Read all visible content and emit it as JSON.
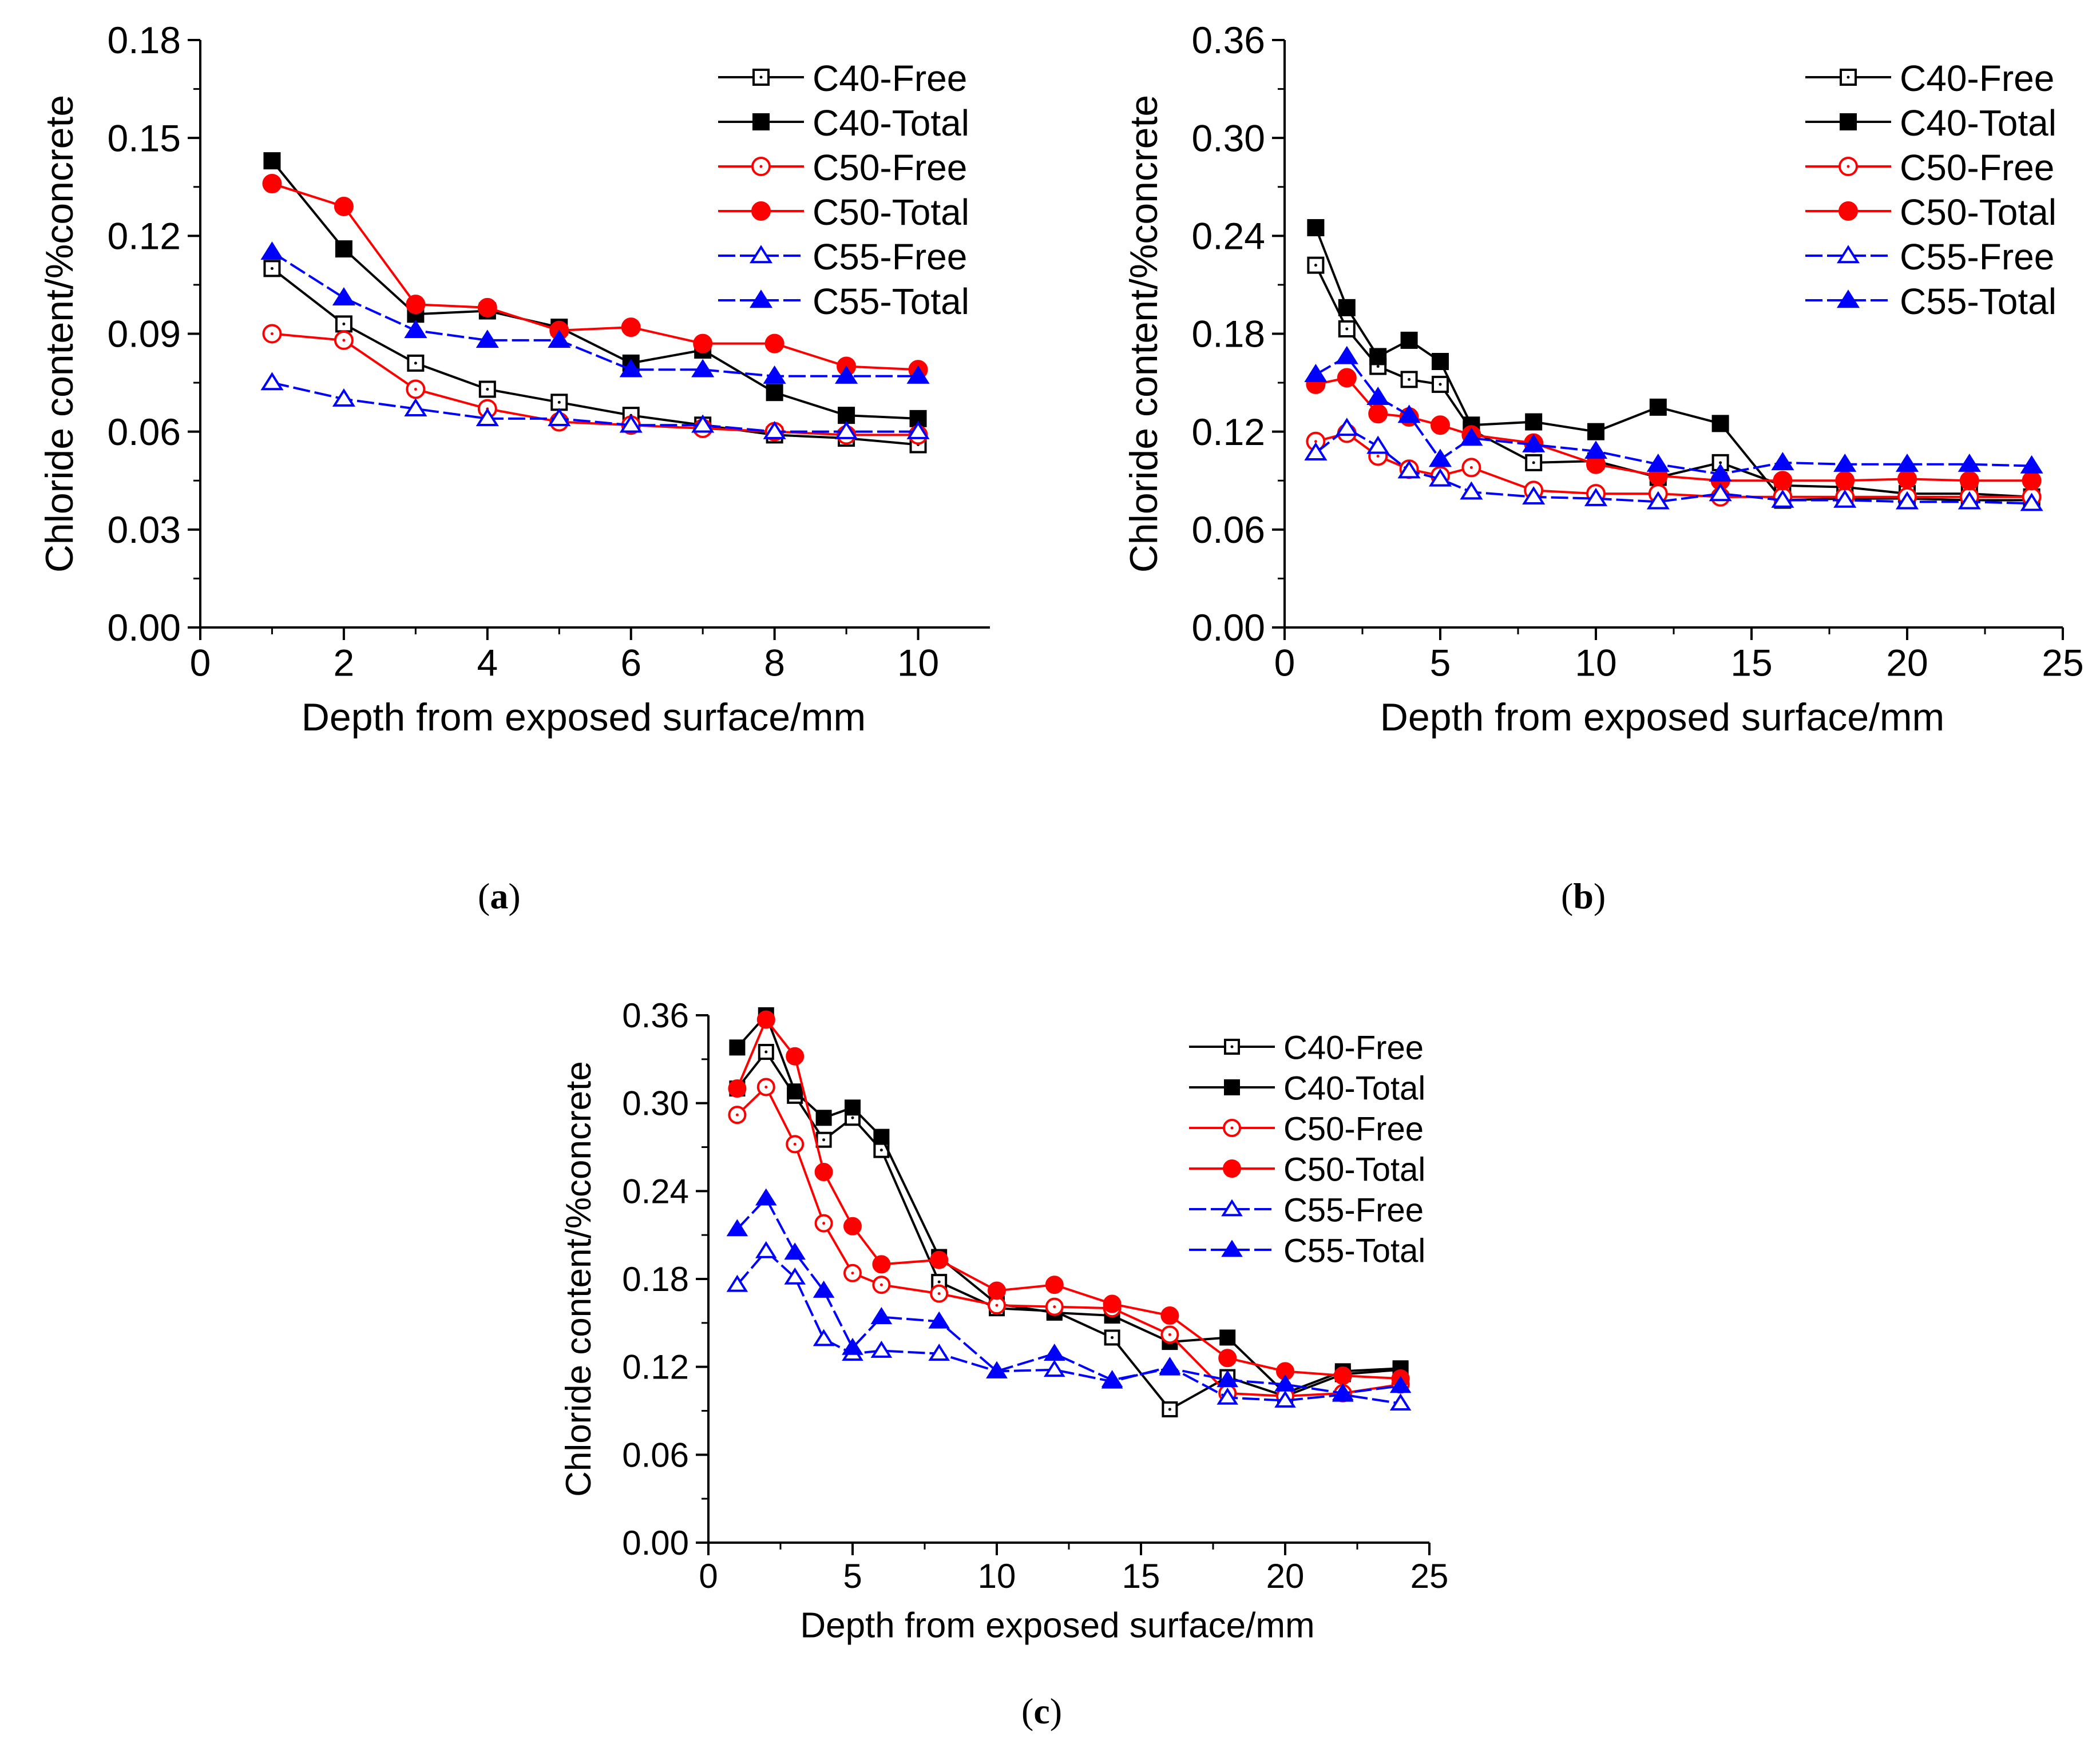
{
  "chart_data": [
    {
      "type": "line",
      "panel": "a",
      "xlabel": "Depth from exposed surface/mm",
      "ylabel": "Chloride content/%concrete",
      "xlim": [
        0,
        11
      ],
      "ylim": [
        0,
        0.18
      ],
      "xticks": [
        0,
        2,
        4,
        6,
        8,
        10
      ],
      "yticks": [
        0.0,
        0.03,
        0.06,
        0.09,
        0.12,
        0.15,
        0.18
      ],
      "ytick_decimals": 2,
      "legend": "top-right",
      "series": [
        {
          "name": "C40-Free",
          "color": "#000000",
          "marker": "square-open",
          "dashed": false,
          "x": [
            1,
            2,
            3,
            4,
            5,
            6,
            7,
            8,
            9,
            10
          ],
          "y": [
            0.11,
            0.093,
            0.081,
            0.073,
            0.069,
            0.065,
            0.062,
            0.059,
            0.058,
            0.056
          ]
        },
        {
          "name": "C40-Total",
          "color": "#000000",
          "marker": "square-filled",
          "dashed": false,
          "x": [
            1,
            2,
            3,
            4,
            5,
            6,
            7,
            8,
            9,
            10
          ],
          "y": [
            0.143,
            0.116,
            0.096,
            0.097,
            0.092,
            0.081,
            0.085,
            0.072,
            0.065,
            0.064
          ]
        },
        {
          "name": "C50-Free",
          "color": "#ff0000",
          "marker": "circle-open",
          "dashed": false,
          "x": [
            1,
            2,
            3,
            4,
            5,
            6,
            7,
            8,
            9,
            10
          ],
          "y": [
            0.09,
            0.088,
            0.073,
            0.067,
            0.063,
            0.062,
            0.061,
            0.06,
            0.059,
            0.059
          ]
        },
        {
          "name": "C50-Total",
          "color": "#ff0000",
          "marker": "circle-filled",
          "dashed": false,
          "x": [
            1,
            2,
            3,
            4,
            5,
            6,
            7,
            8,
            9,
            10
          ],
          "y": [
            0.136,
            0.129,
            0.099,
            0.098,
            0.091,
            0.092,
            0.087,
            0.087,
            0.08,
            0.079
          ]
        },
        {
          "name": "C55-Free",
          "color": "#0000ff",
          "marker": "triangle-open",
          "dashed": true,
          "x": [
            1,
            2,
            3,
            4,
            5,
            6,
            7,
            8,
            9,
            10
          ],
          "y": [
            0.075,
            0.07,
            0.067,
            0.064,
            0.064,
            0.062,
            0.062,
            0.06,
            0.06,
            0.06
          ]
        },
        {
          "name": "C55-Total",
          "color": "#0000ff",
          "marker": "triangle-filled",
          "dashed": true,
          "x": [
            1,
            2,
            3,
            4,
            5,
            6,
            7,
            8,
            9,
            10
          ],
          "y": [
            0.115,
            0.101,
            0.091,
            0.088,
            0.088,
            0.079,
            0.079,
            0.077,
            0.077,
            0.077
          ]
        }
      ]
    },
    {
      "type": "line",
      "panel": "b",
      "xlabel": "Depth from exposed surface/mm",
      "ylabel": "Chloride content/%concrete",
      "xlim": [
        0,
        25
      ],
      "ylim": [
        0,
        0.36
      ],
      "xticks": [
        0,
        5,
        10,
        15,
        20,
        25
      ],
      "yticks": [
        0.0,
        0.06,
        0.12,
        0.18,
        0.24,
        0.3,
        0.36
      ],
      "ytick_decimals": 2,
      "legend": "top-right",
      "series": [
        {
          "name": "C40-Free",
          "color": "#000000",
          "marker": "square-open",
          "dashed": false,
          "x": [
            1,
            2,
            3,
            4,
            5,
            6,
            8,
            10,
            12,
            14,
            16,
            18,
            20,
            22,
            24
          ],
          "y": [
            0.222,
            0.183,
            0.16,
            0.152,
            0.149,
            0.121,
            0.101,
            0.102,
            0.092,
            0.101,
            0.087,
            0.086,
            0.082,
            0.082,
            0.08
          ]
        },
        {
          "name": "C40-Total",
          "color": "#000000",
          "marker": "square-filled",
          "dashed": false,
          "x": [
            1,
            2,
            3,
            4,
            5,
            6,
            8,
            10,
            12,
            14,
            16,
            18,
            20,
            22,
            24
          ],
          "y": [
            0.245,
            0.196,
            0.166,
            0.176,
            0.163,
            0.124,
            0.126,
            0.12,
            0.135,
            0.125,
            0.078,
            0.079,
            0.079,
            0.078,
            0.078
          ]
        },
        {
          "name": "C50-Free",
          "color": "#ff0000",
          "marker": "circle-open",
          "dashed": false,
          "x": [
            1,
            2,
            3,
            4,
            5,
            6,
            8,
            10,
            12,
            14,
            16,
            18,
            20,
            22,
            24
          ],
          "y": [
            0.114,
            0.119,
            0.105,
            0.097,
            0.093,
            0.098,
            0.084,
            0.082,
            0.082,
            0.08,
            0.08,
            0.08,
            0.08,
            0.08,
            0.08
          ]
        },
        {
          "name": "C50-Total",
          "color": "#ff0000",
          "marker": "circle-filled",
          "dashed": false,
          "x": [
            1,
            2,
            3,
            4,
            5,
            6,
            8,
            10,
            12,
            14,
            16,
            18,
            20,
            22,
            24
          ],
          "y": [
            0.149,
            0.153,
            0.131,
            0.129,
            0.124,
            0.118,
            0.113,
            0.1,
            0.093,
            0.09,
            0.09,
            0.09,
            0.091,
            0.09,
            0.09
          ]
        },
        {
          "name": "C55-Free",
          "color": "#0000ff",
          "marker": "triangle-open",
          "dashed": true,
          "x": [
            1,
            2,
            3,
            4,
            5,
            6,
            8,
            10,
            12,
            14,
            16,
            18,
            20,
            22,
            24
          ],
          "y": [
            0.107,
            0.122,
            0.111,
            0.096,
            0.091,
            0.083,
            0.08,
            0.079,
            0.077,
            0.082,
            0.078,
            0.078,
            0.077,
            0.077,
            0.076
          ]
        },
        {
          "name": "C55-Total",
          "color": "#0000ff",
          "marker": "triangle-filled",
          "dashed": true,
          "x": [
            1,
            2,
            3,
            4,
            5,
            6,
            8,
            10,
            12,
            14,
            16,
            18,
            20,
            22,
            24
          ],
          "y": [
            0.155,
            0.166,
            0.141,
            0.13,
            0.103,
            0.116,
            0.112,
            0.108,
            0.1,
            0.094,
            0.101,
            0.1,
            0.1,
            0.1,
            0.099
          ]
        }
      ]
    },
    {
      "type": "line",
      "panel": "c",
      "xlabel": "Depth from exposed surface/mm",
      "ylabel": "Chloride content/%concrete",
      "xlim": [
        0,
        25
      ],
      "ylim": [
        0,
        0.36
      ],
      "xticks": [
        0,
        5,
        10,
        15,
        20,
        25
      ],
      "yticks": [
        0.0,
        0.06,
        0.12,
        0.18,
        0.24,
        0.3,
        0.36
      ],
      "ytick_decimals": 2,
      "legend": "top-right",
      "series": [
        {
          "name": "C40-Free",
          "color": "#000000",
          "marker": "square-open",
          "dashed": false,
          "x": [
            1,
            2,
            3,
            4,
            5,
            6,
            8,
            10,
            12,
            14,
            16,
            18,
            20,
            22,
            24
          ],
          "y": [
            0.31,
            0.335,
            0.305,
            0.275,
            0.29,
            0.268,
            0.178,
            0.16,
            0.158,
            0.14,
            0.091,
            0.113,
            0.1,
            0.115,
            0.118
          ]
        },
        {
          "name": "C40-Total",
          "color": "#000000",
          "marker": "square-filled",
          "dashed": false,
          "x": [
            1,
            2,
            3,
            4,
            5,
            6,
            8,
            10,
            12,
            14,
            16,
            18,
            20,
            22,
            24
          ],
          "y": [
            0.338,
            0.36,
            0.308,
            0.29,
            0.297,
            0.277,
            0.195,
            0.163,
            0.157,
            0.155,
            0.137,
            0.14,
            0.102,
            0.117,
            0.119
          ]
        },
        {
          "name": "C50-Free",
          "color": "#ff0000",
          "marker": "circle-open",
          "dashed": false,
          "x": [
            1,
            2,
            3,
            4,
            5,
            6,
            8,
            10,
            12,
            14,
            16,
            18,
            20,
            22,
            24
          ],
          "y": [
            0.292,
            0.311,
            0.272,
            0.218,
            0.184,
            0.176,
            0.17,
            0.162,
            0.161,
            0.16,
            0.142,
            0.102,
            0.1,
            0.102,
            0.108
          ]
        },
        {
          "name": "C50-Total",
          "color": "#ff0000",
          "marker": "circle-filled",
          "dashed": false,
          "x": [
            1,
            2,
            3,
            4,
            5,
            6,
            8,
            10,
            12,
            14,
            16,
            18,
            20,
            22,
            24
          ],
          "y": [
            0.31,
            0.357,
            0.332,
            0.253,
            0.216,
            0.19,
            0.193,
            0.172,
            0.176,
            0.163,
            0.155,
            0.126,
            0.117,
            0.114,
            0.112
          ]
        },
        {
          "name": "C55-Free",
          "color": "#0000ff",
          "marker": "triangle-open",
          "dashed": true,
          "x": [
            1,
            2,
            3,
            4,
            5,
            6,
            8,
            10,
            12,
            14,
            16,
            18,
            20,
            22,
            24
          ],
          "y": [
            0.176,
            0.199,
            0.181,
            0.139,
            0.129,
            0.131,
            0.129,
            0.117,
            0.118,
            0.11,
            0.12,
            0.099,
            0.097,
            0.101,
            0.095
          ]
        },
        {
          "name": "C55-Total",
          "color": "#0000ff",
          "marker": "triangle-filled",
          "dashed": true,
          "x": [
            1,
            2,
            3,
            4,
            5,
            6,
            8,
            10,
            12,
            14,
            16,
            18,
            20,
            22,
            24
          ],
          "y": [
            0.214,
            0.235,
            0.198,
            0.172,
            0.133,
            0.154,
            0.151,
            0.117,
            0.129,
            0.111,
            0.119,
            0.111,
            0.108,
            0.102,
            0.107
          ]
        }
      ]
    }
  ],
  "panel_labels": [
    "a",
    "b",
    "c"
  ]
}
